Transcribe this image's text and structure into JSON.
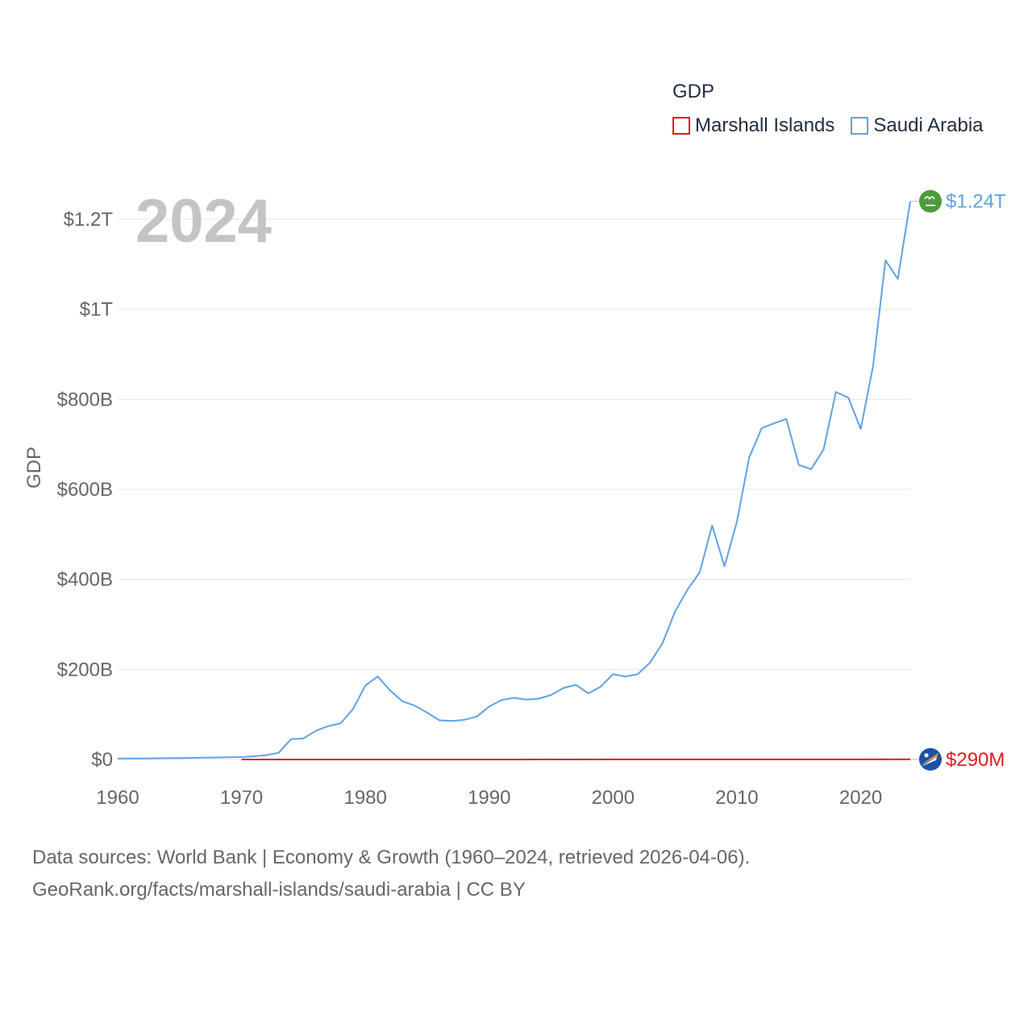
{
  "legend": {
    "title": "GDP",
    "items": [
      {
        "name": "Marshall Islands",
        "color": "#e41a1c"
      },
      {
        "name": "Saudi Arabia",
        "color": "#5fa2e4"
      }
    ]
  },
  "year_label": "2024",
  "source": {
    "line1": "Data sources: World Bank | Economy & Growth (1960–2024, retrieved 2026-04-06).",
    "line2": "GeoRank.org/facts/marshall-islands/saudi-arabia | CC BY"
  },
  "chart_data": {
    "type": "line",
    "title": "",
    "xlabel": "",
    "ylabel": "GDP",
    "xlim": [
      1960,
      2024
    ],
    "ylim": [
      0,
      1200
    ],
    "y_unit": "billion USD",
    "x_ticks": [
      1960,
      1970,
      1980,
      1990,
      2000,
      2010,
      2020
    ],
    "y_ticks": [
      {
        "value": 0,
        "label": "$0"
      },
      {
        "value": 200,
        "label": "$200B"
      },
      {
        "value": 400,
        "label": "$400B"
      },
      {
        "value": 600,
        "label": "$600B"
      },
      {
        "value": 800,
        "label": "$800B"
      },
      {
        "value": 1000,
        "label": "$1T"
      },
      {
        "value": 1200,
        "label": "$1.2T"
      }
    ],
    "series": [
      {
        "name": "Saudi Arabia",
        "color": "#5fa2e4",
        "end_label": "$1.24T",
        "flag_icon": "saudi-arabia-flag-icon",
        "x": [
          1960,
          1961,
          1962,
          1963,
          1964,
          1965,
          1966,
          1967,
          1968,
          1969,
          1970,
          1971,
          1972,
          1973,
          1974,
          1975,
          1976,
          1977,
          1978,
          1979,
          1980,
          1981,
          1982,
          1983,
          1984,
          1985,
          1986,
          1987,
          1988,
          1989,
          1990,
          1991,
          1992,
          1993,
          1994,
          1995,
          1996,
          1997,
          1998,
          1999,
          2000,
          2001,
          2002,
          2003,
          2004,
          2005,
          2006,
          2007,
          2008,
          2009,
          2010,
          2011,
          2012,
          2013,
          2014,
          2015,
          2016,
          2017,
          2018,
          2019,
          2020,
          2021,
          2022,
          2023,
          2024
        ],
        "values": [
          2,
          2.2,
          2.4,
          2.6,
          2.9,
          3.3,
          3.6,
          4.1,
          4.5,
          4.9,
          5.4,
          7.2,
          9.7,
          14.9,
          45.4,
          46.8,
          64,
          74.2,
          80.3,
          111.9,
          164.5,
          184.3,
          153.2,
          129.2,
          119.6,
          103.9,
          86.9,
          85.7,
          88.3,
          95.3,
          117.6,
          132.2,
          137.1,
          132.9,
          135.2,
          143.3,
          158.7,
          165.9,
          146.8,
          161.7,
          189.5,
          184.1,
          189.6,
          215.8,
          258.7,
          328.5,
          376.9,
          415.9,
          519.8,
          429.1,
          528.2,
          671.2,
          735.9,
          746.6,
          756.4,
          654.3,
          644.9,
          688.6,
          816.6,
          803.6,
          734.3,
          874.2,
          1108.6,
          1067.6,
          1240
        ]
      },
      {
        "name": "Marshall Islands",
        "color": "#e41a1c",
        "end_label": "$290M",
        "flag_icon": "marshall-islands-flag-icon",
        "x": [
          1970,
          1980,
          1990,
          2000,
          2010,
          2018,
          2020,
          2024
        ],
        "values": [
          0.03,
          0.05,
          0.07,
          0.11,
          0.17,
          0.22,
          0.24,
          0.29
        ]
      }
    ]
  }
}
